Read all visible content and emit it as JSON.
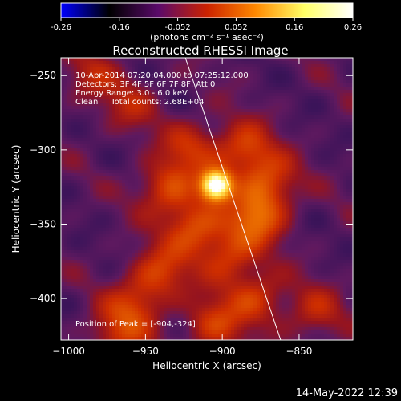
{
  "colorbar": {
    "ticks": [
      "-0.26",
      "-0.16",
      "-0.052",
      "0.052",
      "0.16",
      "0.26"
    ],
    "units": "(photons cm⁻² s⁻¹ asec⁻²)",
    "colormap": [
      "#0000ff",
      "#000000",
      "#5a0a6a",
      "#cc2200",
      "#ff8800",
      "#ffff66",
      "#ffffff"
    ]
  },
  "plot": {
    "title": "Reconstructed RHESSI Image",
    "info_lines": [
      "10-Apr-2014 07:20:04.000 to 07:25:12.000",
      "Detectors: 3F 4F 5F 6F 7F 8F, Att 0",
      "Energy Range: 3.0 - 6.0 keV",
      "Clean     Total counts: 2.68E+04"
    ],
    "peak_label": "Position of Peak = [-904,-324]",
    "footer_date": "14-May-2022 12:39",
    "background_color": "#4a1460"
  },
  "chart_data": {
    "type": "heatmap",
    "title": "Reconstructed RHESSI Image",
    "xlabel": "Heliocentric X (arcsec)",
    "ylabel": "Heliocentric Y (arcsec)",
    "xlim": [
      -1005,
      -815
    ],
    "ylim": [
      -428,
      -238
    ],
    "xticks": [
      -1000,
      -950,
      -900,
      -850
    ],
    "yticks": [
      -400,
      -350,
      -300,
      -250
    ],
    "xtick_labels": [
      "−1000",
      "−950",
      "−900",
      "−850"
    ],
    "ytick_labels": [
      "−400",
      "−350",
      "−300",
      "−250"
    ],
    "value_range": [
      -0.26,
      0.26
    ],
    "peak": {
      "x": -904,
      "y": -324
    },
    "limb_line": [
      [
        -924,
        -238
      ],
      [
        -862,
        -428
      ]
    ],
    "source_lobes": [
      {
        "x": -904,
        "y": -324,
        "amp": 0.26
      },
      {
        "x": -878,
        "y": -346,
        "amp": 0.11
      },
      {
        "x": -918,
        "y": -352,
        "amp": 0.1
      },
      {
        "x": -886,
        "y": -300,
        "amp": 0.09
      },
      {
        "x": -936,
        "y": -326,
        "amp": 0.09
      },
      {
        "x": -870,
        "y": -322,
        "amp": 0.09
      },
      {
        "x": -920,
        "y": -298,
        "amp": 0.07
      },
      {
        "x": -896,
        "y": -372,
        "amp": 0.08
      },
      {
        "x": -940,
        "y": -382,
        "amp": 0.08
      },
      {
        "x": -878,
        "y": -400,
        "amp": 0.08
      },
      {
        "x": -906,
        "y": -418,
        "amp": 0.08
      },
      {
        "x": -956,
        "y": -404,
        "amp": 0.07
      },
      {
        "x": -968,
        "y": -424,
        "amp": 0.07
      },
      {
        "x": -840,
        "y": -410,
        "amp": 0.06
      },
      {
        "x": -985,
        "y": -250,
        "amp": 0.05
      },
      {
        "x": -960,
        "y": -270,
        "amp": 0.05
      }
    ]
  }
}
